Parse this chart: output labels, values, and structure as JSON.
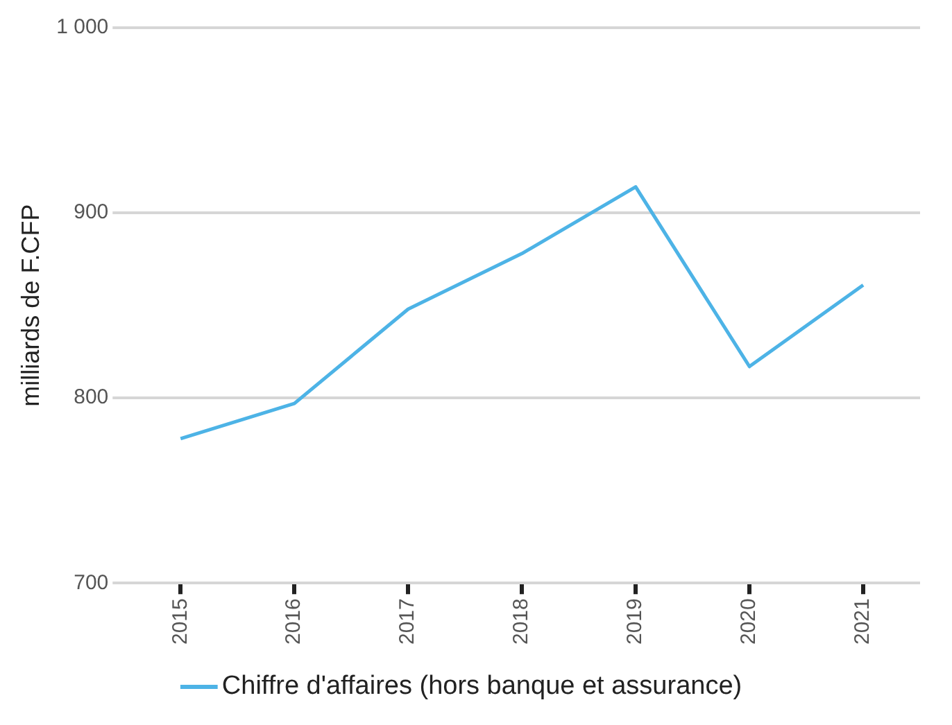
{
  "chart_data": {
    "type": "line",
    "ylabel": "milliards de F.CFP",
    "categories": [
      "2015",
      "2016",
      "2017",
      "2018",
      "2019",
      "2020",
      "2021"
    ],
    "series": [
      {
        "name": "Chiffre d'affaires (hors banque et assurance)",
        "color": "#4db3e6",
        "values": [
          778,
          797,
          848,
          878,
          914,
          817,
          861
        ]
      }
    ],
    "ylim": [
      700,
      1000
    ],
    "yticks": [
      700,
      800,
      900,
      {
        "value": 1000,
        "label": "1 000"
      }
    ],
    "grid": "y",
    "legend": "bottom",
    "marker": "none",
    "line_style": "solid"
  }
}
